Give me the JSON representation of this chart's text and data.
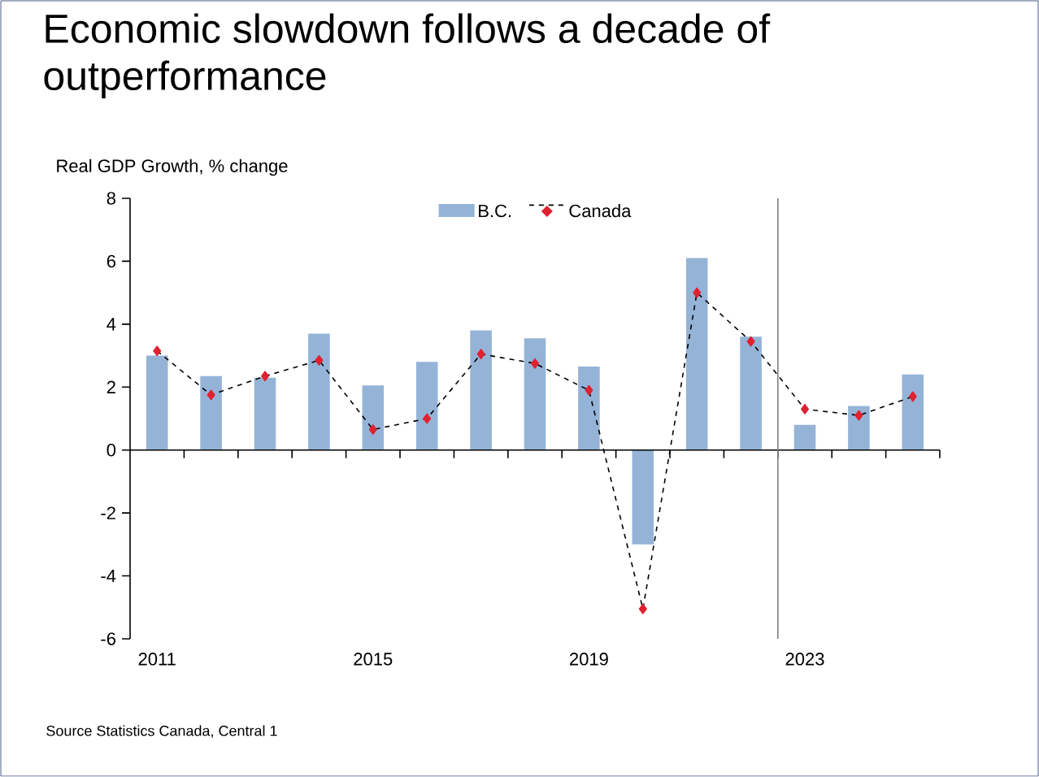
{
  "chart_data": {
    "type": "bar",
    "title": "Economic slowdown follows a decade of outperformance",
    "ylabel": "Real GDP Growth, % change",
    "x": [
      2011,
      2012,
      2013,
      2014,
      2015,
      2016,
      2017,
      2018,
      2019,
      2020,
      2021,
      2022,
      2023,
      2024,
      2025
    ],
    "series": [
      {
        "name": "B.C.",
        "color": "#95b3d7",
        "values": [
          3.0,
          2.35,
          2.3,
          3.7,
          2.05,
          2.8,
          3.8,
          3.55,
          2.65,
          -3.0,
          6.1,
          3.6,
          0.8,
          1.4,
          2.4
        ]
      },
      {
        "name": "Canada",
        "type": "line",
        "color": "#e0212f",
        "marker": "diamond",
        "line_style": "dashed",
        "values": [
          3.15,
          1.75,
          2.35,
          2.85,
          0.65,
          1.0,
          3.05,
          2.75,
          1.9,
          -5.05,
          5.0,
          3.45,
          1.3,
          1.1,
          1.7
        ]
      }
    ],
    "xlim": [
      2010.5,
      2025.5
    ],
    "xticks": [
      2011,
      2015,
      2019,
      2023,
      {
        "value": 2011.5,
        "label": null
      },
      {
        "value": 2012.5,
        "label": null
      },
      {
        "value": 2013.5,
        "label": null
      },
      {
        "value": 2014.5,
        "label": null
      },
      {
        "value": 2015.5,
        "label": null
      },
      {
        "value": 2016.5,
        "label": null
      },
      {
        "value": 2017.5,
        "label": null
      },
      {
        "value": 2018.5,
        "label": null
      },
      {
        "value": 2019.5,
        "label": null
      },
      {
        "value": 2020.5,
        "label": null
      },
      {
        "value": 2021.5,
        "label": null
      },
      {
        "value": 2022.5,
        "label": null
      },
      {
        "value": 2023.5,
        "label": null
      },
      {
        "value": 2024.5,
        "label": null
      },
      {
        "value": 2025.5,
        "label": null
      }
    ],
    "ylim": [
      -6,
      8
    ],
    "yticks": [
      -6,
      -4,
      -2,
      0,
      2,
      4,
      6,
      8
    ],
    "ref_lines": [
      {
        "axis": "x",
        "value": 2022.5,
        "color": "#808080"
      }
    ],
    "grid": false,
    "legend": "top",
    "annotations": [
      "Source Statistics Canada, Central 1"
    ]
  }
}
